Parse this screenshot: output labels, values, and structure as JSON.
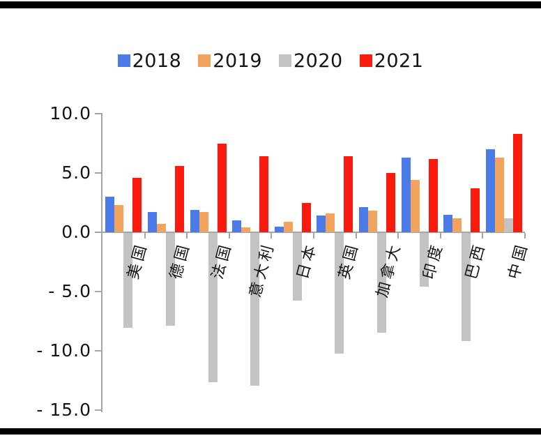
{
  "legend": {
    "items": [
      {
        "label": "2018",
        "color": "#4b7be8"
      },
      {
        "label": "2019",
        "color": "#f2a45f"
      },
      {
        "label": "2020",
        "color": "#c3c3c3"
      },
      {
        "label": "2021",
        "color": "#fb1a0e"
      }
    ]
  },
  "chart_data": {
    "type": "bar",
    "title": "",
    "xlabel": "",
    "ylabel": "",
    "categories": [
      "美国",
      "德国",
      "法国",
      "意大利",
      "日本",
      "英国",
      "加拿大",
      "印度",
      "巴西",
      "中国"
    ],
    "series": [
      {
        "name": "2018",
        "color": "#4b7be8",
        "values": [
          3.0,
          1.7,
          1.9,
          1.0,
          0.5,
          1.4,
          2.1,
          6.3,
          1.5,
          7.0
        ]
      },
      {
        "name": "2019",
        "color": "#f2a45f",
        "values": [
          2.3,
          0.7,
          1.7,
          0.4,
          0.9,
          1.6,
          1.8,
          4.4,
          1.2,
          6.3
        ]
      },
      {
        "name": "2020",
        "color": "#c3c3c3",
        "values": [
          -8.0,
          -7.8,
          -12.6,
          -12.9,
          -5.7,
          -10.2,
          -8.4,
          -4.5,
          -9.1,
          1.2
        ]
      },
      {
        "name": "2021",
        "color": "#fb1a0e",
        "values": [
          4.6,
          5.6,
          7.5,
          6.4,
          2.5,
          6.4,
          5.0,
          6.2,
          3.7,
          8.3
        ]
      }
    ],
    "ylim": [
      -15,
      10
    ],
    "ytick_step": 5,
    "ytick_labels": [
      "10.0",
      "5.0",
      "0.0",
      "- 5.0",
      "- 10.0",
      "- 15.0"
    ],
    "grid": false,
    "legend_position": "top-center",
    "axis_color": "#a6a6a6",
    "text_color": "#141414"
  }
}
